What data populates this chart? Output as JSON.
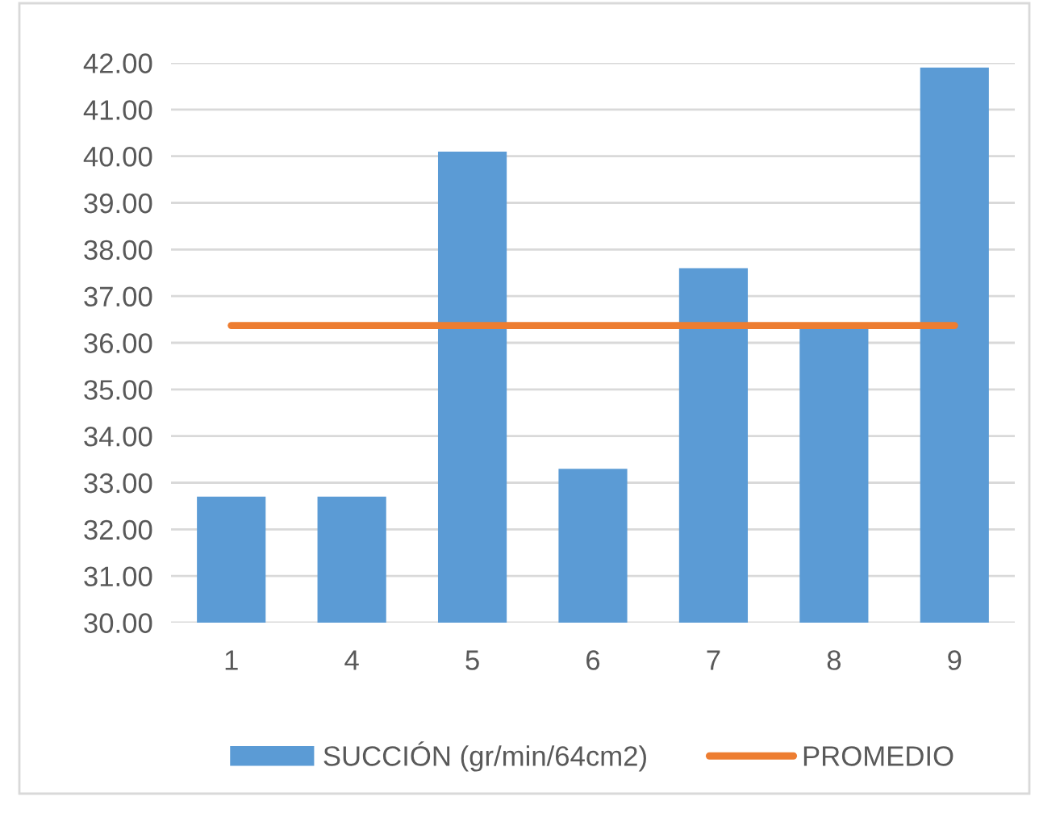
{
  "chart_data": {
    "type": "bar",
    "categories": [
      "1",
      "4",
      "5",
      "6",
      "7",
      "8",
      "9"
    ],
    "series": [
      {
        "name": "SUCCIÓN (gr/min/64cm2)",
        "color": "#5b9bd5",
        "values": [
          32.7,
          32.7,
          40.1,
          33.3,
          37.6,
          36.3,
          41.9
        ]
      },
      {
        "name": "PROMEDIO",
        "type": "line",
        "color": "#ed7d31",
        "values": [
          36.37,
          36.37,
          36.37,
          36.37,
          36.37,
          36.37,
          36.37
        ]
      }
    ],
    "ylim": [
      30,
      42
    ],
    "yticks": [
      {
        "value": 30,
        "label": "30.00"
      },
      {
        "value": 31,
        "label": "31.00"
      },
      {
        "value": 32,
        "label": "32.00"
      },
      {
        "value": 33,
        "label": "33.00"
      },
      {
        "value": 34,
        "label": "34.00"
      },
      {
        "value": 35,
        "label": "35.00"
      },
      {
        "value": 36,
        "label": "36.00"
      },
      {
        "value": 37,
        "label": "37.00"
      },
      {
        "value": 38,
        "label": "38.00"
      },
      {
        "value": 39,
        "label": "39.00"
      },
      {
        "value": 40,
        "label": "40.00"
      },
      {
        "value": 41,
        "label": "41.00"
      },
      {
        "value": 42,
        "label": "42.00"
      }
    ],
    "grid": "y",
    "legend": "bottom"
  }
}
